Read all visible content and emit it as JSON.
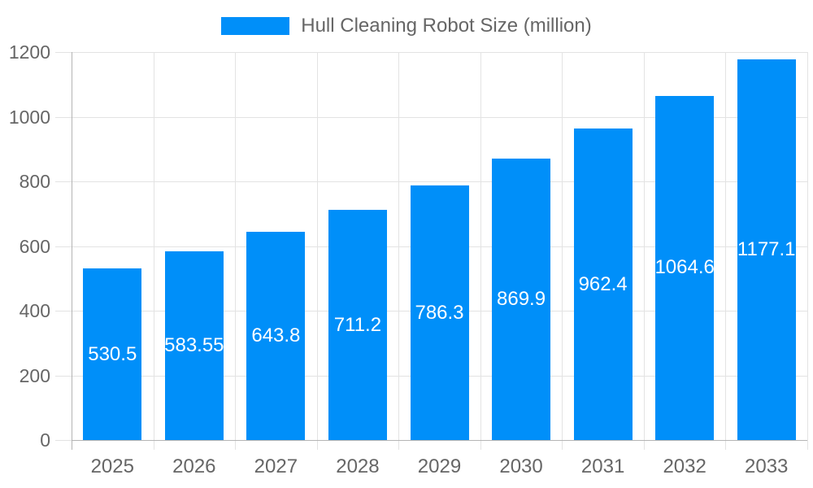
{
  "legend": {
    "label": "Hull Cleaning Robot Size (million)"
  },
  "colors": {
    "bar": "#008FF9",
    "axis_text": "#666666",
    "grid_line": "#e3e3e3",
    "axis_line": "#b4b4b4",
    "value_label": "#ffffff",
    "background": "#ffffff"
  },
  "chart_data": {
    "type": "bar",
    "title": "Hull Cleaning Robot Size (million)",
    "categories": [
      "2025",
      "2026",
      "2027",
      "2028",
      "2029",
      "2030",
      "2031",
      "2032",
      "2033"
    ],
    "values": [
      530.5,
      583.55,
      643.8,
      711.2,
      786.3,
      869.9,
      962.4,
      1064.6,
      1177.1
    ],
    "value_labels": [
      "530.5",
      "583.55",
      "643.8",
      "711.2",
      "786.3",
      "869.9",
      "962.4",
      "1064.6",
      "1177.1"
    ],
    "xlabel": "",
    "ylabel": "",
    "ylim": [
      0,
      1200
    ],
    "ytick_step": 200,
    "ytick_labels": [
      "0",
      "200",
      "400",
      "600",
      "800",
      "1000",
      "1200"
    ],
    "grid": true,
    "legend_position": "top",
    "series_name": "Hull Cleaning Robot Size (million)"
  }
}
